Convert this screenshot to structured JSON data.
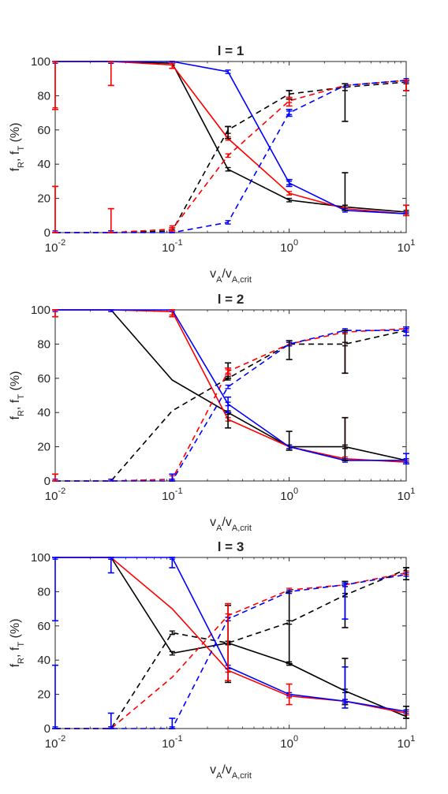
{
  "chart_data": [
    {
      "type": "line",
      "title": "l = 1",
      "ylabel": "f_R, f_T (%)",
      "xlabel": "v_A/v_A,crit",
      "xscale": "log",
      "xlim": [
        0.01,
        10
      ],
      "ylim": [
        0,
        100
      ],
      "xticks": [
        0.01,
        0.1,
        1,
        10
      ],
      "yticks": [
        0,
        20,
        40,
        60,
        80,
        100
      ],
      "grid": false,
      "x": [
        0.01,
        0.03,
        0.1,
        0.3,
        1,
        3,
        10
      ],
      "series": [
        {
          "color": "#000000",
          "style": "solid",
          "values": [
            100,
            100,
            99,
            37,
            19,
            15,
            12
          ],
          "err": [
            0,
            1,
            1,
            1,
            1,
            1,
            1
          ]
        },
        {
          "color": "#000000",
          "style": "dashed",
          "values": [
            0,
            0,
            1,
            60,
            81,
            85,
            88
          ],
          "err": [
            0,
            1,
            1,
            2,
            2,
            2,
            1
          ]
        },
        {
          "color": "#ff0000",
          "style": "solid",
          "values": [
            100,
            100,
            98,
            55,
            23,
            14,
            11
          ],
          "err": [
            27,
            14,
            2,
            1,
            1,
            1,
            1
          ]
        },
        {
          "color": "#ff0000",
          "style": "dashed",
          "values": [
            0,
            0,
            2,
            45,
            77,
            86,
            89
          ],
          "err": [
            27,
            14,
            2,
            1,
            1,
            1,
            1
          ]
        },
        {
          "color": "#0000ff",
          "style": "solid",
          "values": [
            100,
            100,
            100,
            94,
            29,
            13,
            11
          ],
          "err": [
            1,
            1,
            1,
            1,
            1,
            1,
            1
          ]
        },
        {
          "color": "#0000ff",
          "style": "dashed",
          "values": [
            0,
            0,
            0,
            6,
            70,
            86,
            89
          ],
          "err": [
            1,
            1,
            1,
            1,
            1,
            1,
            1
          ]
        }
      ]
    },
    {
      "type": "line",
      "title": "l = 2",
      "ylabel": "f_R, f_T (%)",
      "xlabel": "v_A/v_A,crit",
      "xscale": "log",
      "xlim": [
        0.01,
        10
      ],
      "ylim": [
        0,
        100
      ],
      "xticks": [
        0.01,
        0.1,
        1,
        10
      ],
      "yticks": [
        0,
        20,
        40,
        60,
        80,
        100
      ],
      "grid": false,
      "x": [
        0.01,
        0.03,
        0.1,
        0.3,
        1,
        3,
        10
      ],
      "series": [
        {
          "color": "#000000",
          "style": "solid",
          "values": [
            100,
            100,
            59,
            40,
            20,
            20,
            12
          ],
          "err": [
            0,
            0,
            0,
            1,
            1,
            1,
            1
          ]
        },
        {
          "color": "#000000",
          "style": "dashed",
          "values": [
            0,
            0,
            41,
            60,
            80,
            80,
            88
          ],
          "err": [
            0,
            0,
            0,
            1,
            1,
            1,
            1
          ]
        },
        {
          "color": "#ff0000",
          "style": "solid",
          "values": [
            100,
            100,
            99,
            36,
            20,
            13,
            11
          ],
          "err": [
            4,
            1,
            2,
            1,
            1,
            1,
            1
          ]
        },
        {
          "color": "#ff0000",
          "style": "dashed",
          "values": [
            0,
            0,
            1,
            64,
            80,
            87,
            89
          ],
          "err": [
            4,
            1,
            2,
            1,
            1,
            1,
            1
          ]
        },
        {
          "color": "#0000ff",
          "style": "solid",
          "values": [
            100,
            100,
            100,
            45,
            20,
            12,
            12
          ],
          "err": [
            1,
            1,
            1,
            1,
            1,
            1,
            1
          ]
        },
        {
          "color": "#0000ff",
          "style": "dashed",
          "values": [
            0,
            0,
            0,
            55,
            80,
            88,
            88
          ],
          "err": [
            1,
            1,
            1,
            1,
            1,
            1,
            1
          ]
        }
      ]
    },
    {
      "type": "line",
      "title": "l = 3",
      "ylabel": "f_R, f_T (%)",
      "xlabel": "v_A/v_A,crit",
      "xscale": "log",
      "xlim": [
        0.01,
        10
      ],
      "ylim": [
        0,
        100
      ],
      "xticks": [
        0.01,
        0.1,
        1,
        10
      ],
      "yticks": [
        0,
        20,
        40,
        60,
        80,
        100
      ],
      "grid": false,
      "x": [
        0.01,
        0.03,
        0.1,
        0.3,
        1,
        3,
        10
      ],
      "series": [
        {
          "color": "#000000",
          "style": "solid",
          "values": [
            100,
            100,
            44,
            50,
            38,
            22,
            7
          ],
          "err": [
            0,
            1,
            1,
            1,
            1,
            1,
            1
          ]
        },
        {
          "color": "#000000",
          "style": "dashed",
          "values": [
            0,
            0,
            56,
            50,
            62,
            78,
            93
          ],
          "err": [
            0,
            1,
            1,
            1,
            1,
            1,
            1
          ]
        },
        {
          "color": "#ff0000",
          "style": "solid",
          "values": [
            100,
            100,
            70,
            34,
            19,
            16,
            9
          ],
          "err": [
            0,
            0,
            0,
            1,
            1,
            1,
            1
          ]
        },
        {
          "color": "#ff0000",
          "style": "dashed",
          "values": [
            0,
            0,
            30,
            66,
            81,
            84,
            91
          ],
          "err": [
            0,
            0,
            0,
            1,
            1,
            1,
            1
          ]
        },
        {
          "color": "#0000ff",
          "style": "solid",
          "values": [
            100,
            100,
            100,
            36,
            20,
            16,
            10
          ],
          "err": [
            1,
            1,
            1,
            1,
            1,
            1,
            1
          ]
        },
        {
          "color": "#0000ff",
          "style": "dashed",
          "values": [
            0,
            0,
            0,
            64,
            80,
            84,
            90
          ],
          "err": [
            1,
            1,
            1,
            1,
            1,
            1,
            1
          ]
        }
      ]
    }
  ],
  "errorbars": [
    [
      {
        "x": 0.01,
        "color": "#ff0000",
        "lo": 72,
        "hi": 100
      },
      {
        "x": 0.01,
        "color": "#ff0000",
        "lo": 0,
        "hi": 27
      },
      {
        "x": 0.03,
        "color": "#ff0000",
        "lo": 86,
        "hi": 100
      },
      {
        "x": 0.03,
        "color": "#ff0000",
        "lo": 0,
        "hi": 14
      },
      {
        "x": 0.1,
        "color": "#ff0000",
        "lo": 96,
        "hi": 99
      },
      {
        "x": 0.1,
        "color": "#ff0000",
        "lo": 1,
        "hi": 3
      },
      {
        "x": 0.3,
        "color": "#000000",
        "lo": 55,
        "hi": 62
      },
      {
        "x": 1,
        "color": "#000000",
        "lo": 78,
        "hi": 83
      },
      {
        "x": 1,
        "color": "#ff0000",
        "lo": 74,
        "hi": 79
      },
      {
        "x": 1,
        "color": "#0000ff",
        "lo": 68,
        "hi": 72
      },
      {
        "x": 1,
        "color": "#0000ff",
        "lo": 27,
        "hi": 31
      },
      {
        "x": 3,
        "color": "#000000",
        "lo": 65,
        "hi": 87
      },
      {
        "x": 3,
        "color": "#000000",
        "lo": 13,
        "hi": 35
      },
      {
        "x": 10,
        "color": "#000000",
        "lo": 83,
        "hi": 89
      },
      {
        "x": 10,
        "color": "#ff0000",
        "lo": 83,
        "hi": 89
      },
      {
        "x": 10,
        "color": "#000000",
        "lo": 10,
        "hi": 16
      },
      {
        "x": 10,
        "color": "#ff0000",
        "lo": 10,
        "hi": 16
      }
    ],
    [
      {
        "x": 0.01,
        "color": "#ff0000",
        "lo": 96,
        "hi": 100
      },
      {
        "x": 0.01,
        "color": "#ff0000",
        "lo": 0,
        "hi": 4
      },
      {
        "x": 0.1,
        "color": "#ff0000",
        "lo": 96,
        "hi": 100
      },
      {
        "x": 0.1,
        "color": "#0000ff",
        "lo": 0,
        "hi": 4
      },
      {
        "x": 0.3,
        "color": "#000000",
        "lo": 31,
        "hi": 40
      },
      {
        "x": 0.3,
        "color": "#000000",
        "lo": 60,
        "hi": 69
      },
      {
        "x": 0.3,
        "color": "#0000ff",
        "lo": 40,
        "hi": 49
      },
      {
        "x": 0.3,
        "color": "#ff0000",
        "lo": 62,
        "hi": 66
      },
      {
        "x": 1,
        "color": "#000000",
        "lo": 71,
        "hi": 82
      },
      {
        "x": 1,
        "color": "#000000",
        "lo": 18,
        "hi": 29
      },
      {
        "x": 3,
        "color": "#ff0000",
        "lo": 63,
        "hi": 88
      },
      {
        "x": 3,
        "color": "#ff0000",
        "lo": 12,
        "hi": 37
      },
      {
        "x": 3,
        "color": "#000000",
        "lo": 63,
        "hi": 88
      },
      {
        "x": 3,
        "color": "#000000",
        "lo": 12,
        "hi": 37
      },
      {
        "x": 10,
        "color": "#0000ff",
        "lo": 85,
        "hi": 90
      },
      {
        "x": 10,
        "color": "#0000ff",
        "lo": 10,
        "hi": 16
      }
    ],
    [
      {
        "x": 0.01,
        "color": "#0000ff",
        "lo": 63,
        "hi": 100
      },
      {
        "x": 0.01,
        "color": "#0000ff",
        "lo": 0,
        "hi": 37
      },
      {
        "x": 0.03,
        "color": "#0000ff",
        "lo": 91,
        "hi": 100
      },
      {
        "x": 0.03,
        "color": "#0000ff",
        "lo": 0,
        "hi": 9
      },
      {
        "x": 0.1,
        "color": "#0000ff",
        "lo": 94,
        "hi": 100
      },
      {
        "x": 0.1,
        "color": "#0000ff",
        "lo": 0,
        "hi": 6
      },
      {
        "x": 0.3,
        "color": "#000000",
        "lo": 27,
        "hi": 72
      },
      {
        "x": 0.3,
        "color": "#ff0000",
        "lo": 28,
        "hi": 73
      },
      {
        "x": 1,
        "color": "#000000",
        "lo": 38,
        "hi": 80
      },
      {
        "x": 1,
        "color": "#ff0000",
        "lo": 14,
        "hi": 26
      },
      {
        "x": 3,
        "color": "#000000",
        "lo": 59,
        "hi": 86
      },
      {
        "x": 3,
        "color": "#000000",
        "lo": 14,
        "hi": 41
      },
      {
        "x": 3,
        "color": "#0000ff",
        "lo": 64,
        "hi": 85
      },
      {
        "x": 3,
        "color": "#0000ff",
        "lo": 12,
        "hi": 36
      },
      {
        "x": 10,
        "color": "#000000",
        "lo": 87,
        "hi": 94
      },
      {
        "x": 10,
        "color": "#000000",
        "lo": 6,
        "hi": 13
      }
    ]
  ]
}
